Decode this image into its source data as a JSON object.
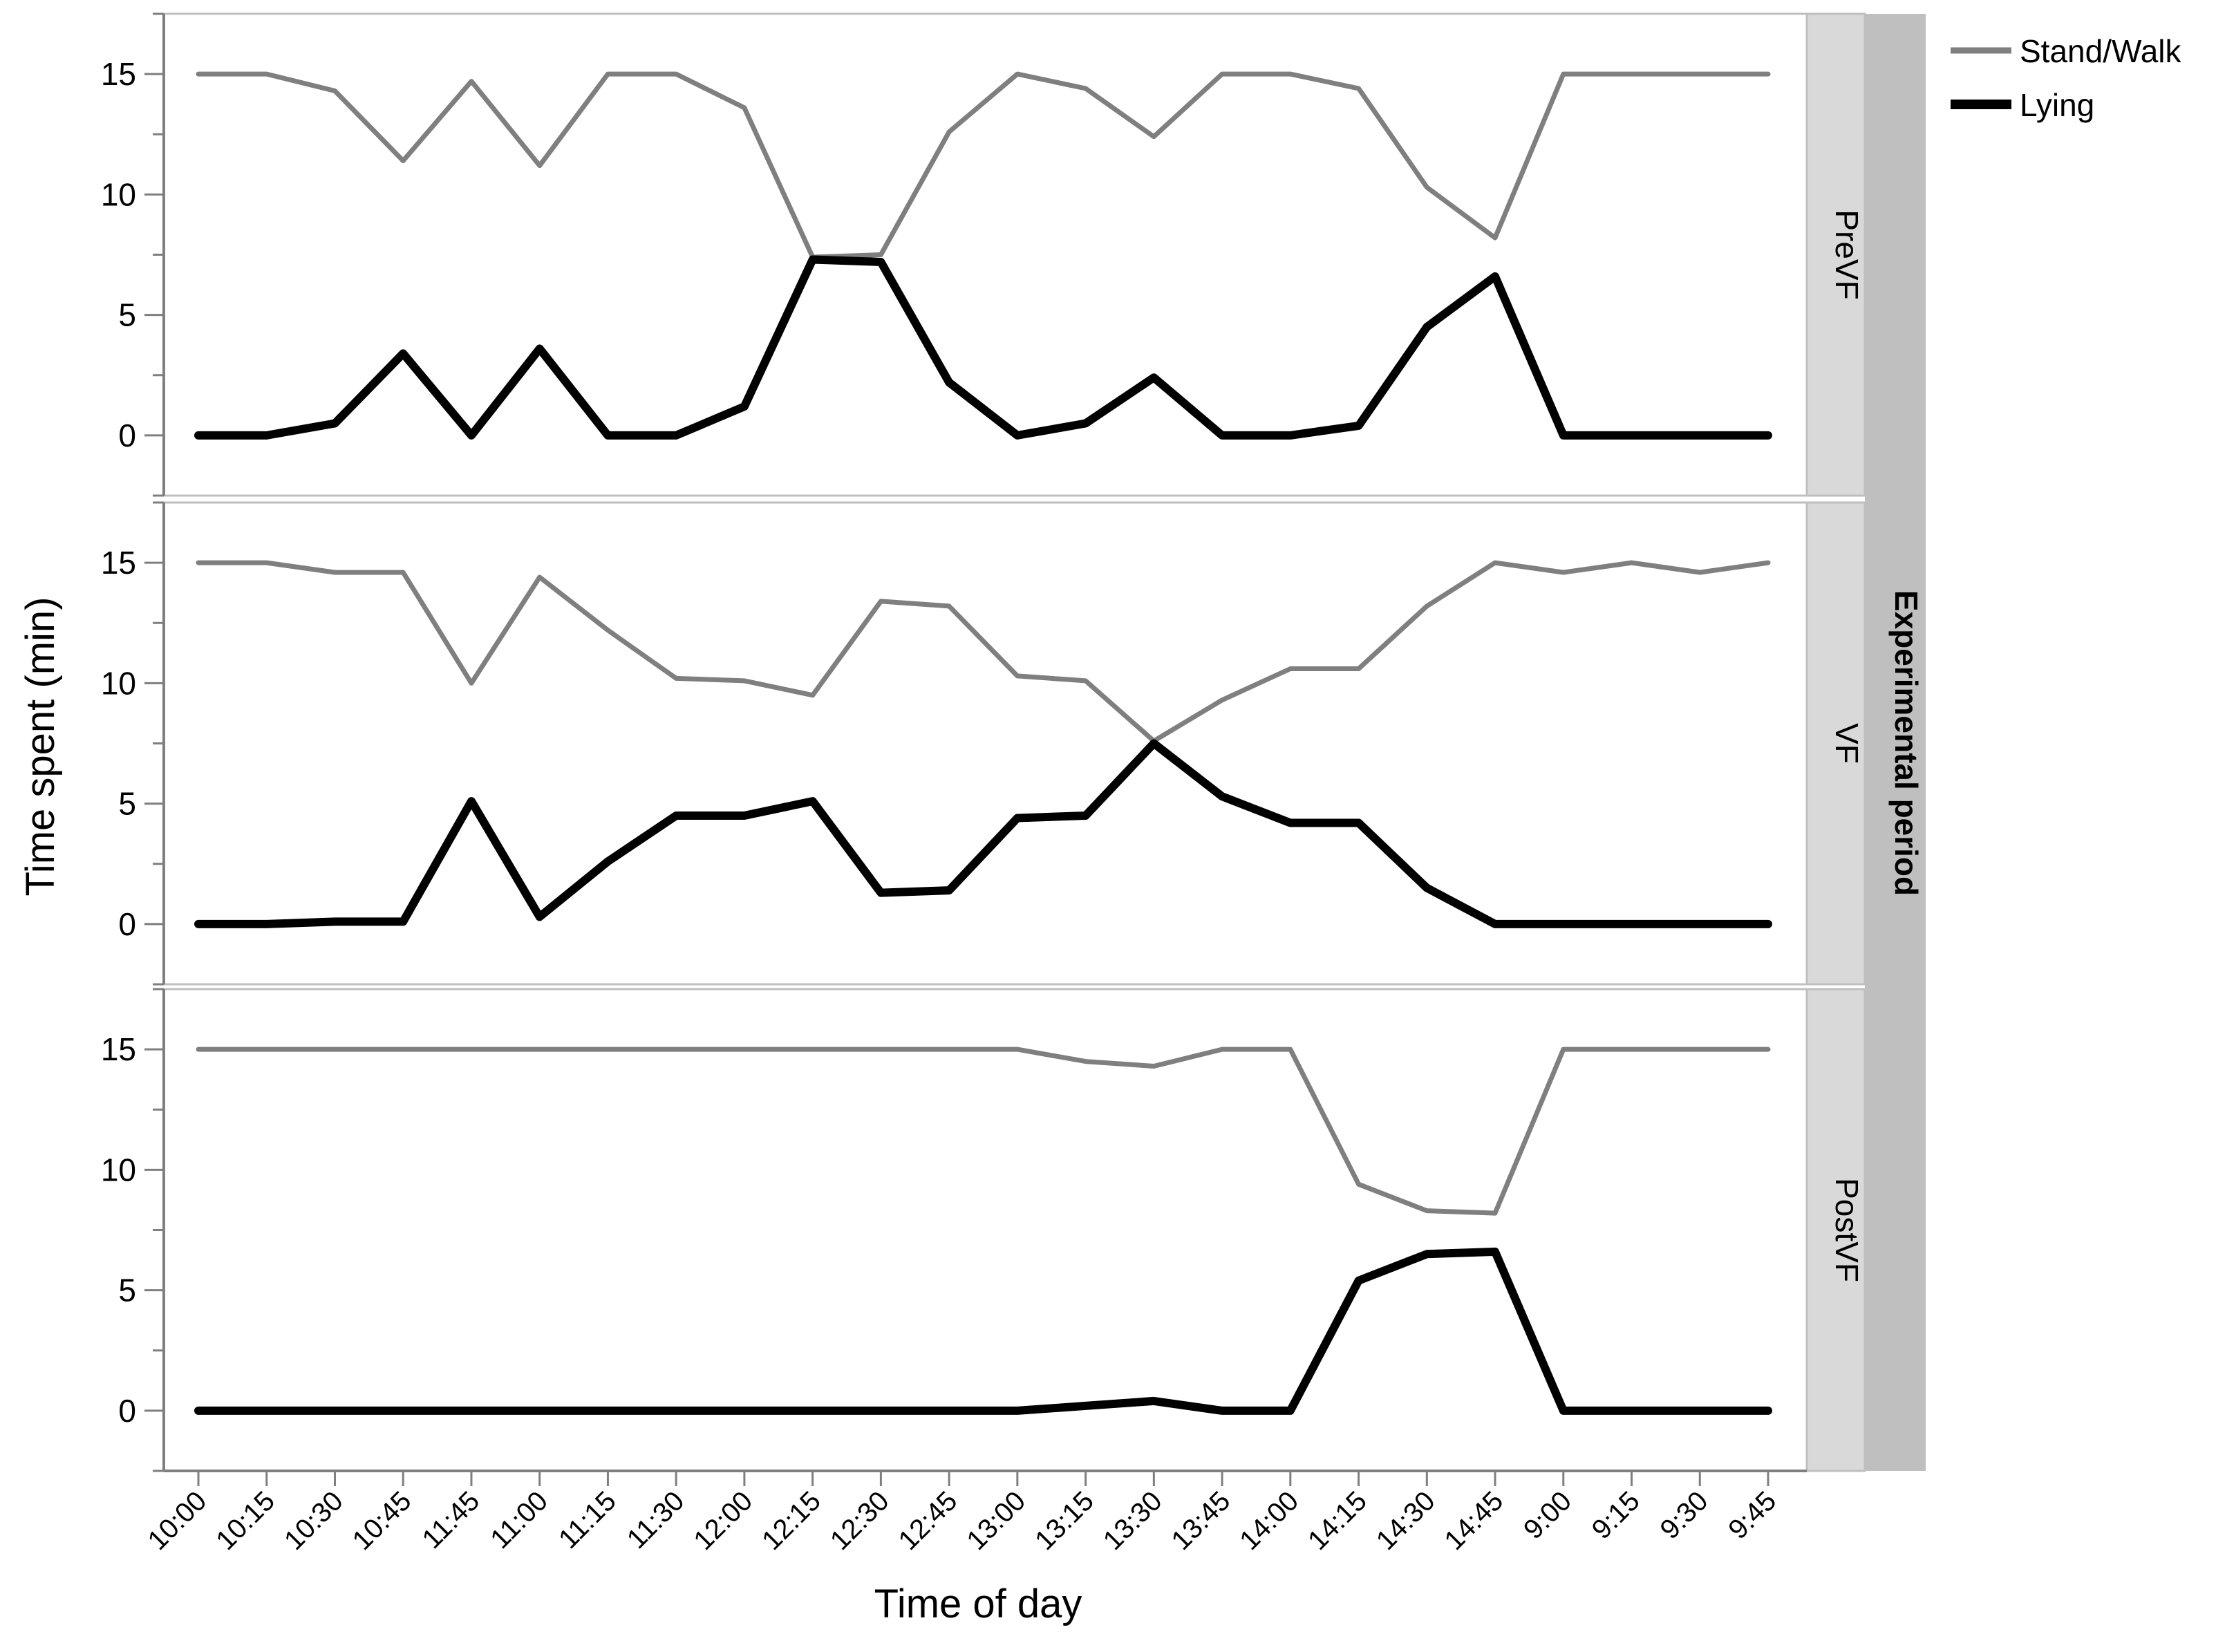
{
  "chart_data": {
    "type": "line",
    "ylabel": "Time spent (min)",
    "xlabel": "Time of day",
    "facet_label": "Experimental period",
    "categories": [
      "10:00",
      "10:15",
      "10:30",
      "10:45",
      "11:45",
      "11:00",
      "11:15",
      "11:30",
      "12:00",
      "12:15",
      "12:30",
      "12:45",
      "13:00",
      "13:15",
      "13:30",
      "13:45",
      "14:00",
      "14:15",
      "14:30",
      "14:45",
      "9:00",
      "9:15",
      "9:30",
      "9:45"
    ],
    "ylim": [
      -2.5,
      17.5
    ],
    "yticks": [
      0,
      5,
      10,
      15
    ],
    "grid": false,
    "legend_position": "top-right",
    "legend": [
      {
        "name": "Stand/Walk",
        "color": "#7f7f7f"
      },
      {
        "name": "Lying",
        "color": "#000000"
      }
    ],
    "panels": [
      {
        "name": "PreVF",
        "series": [
          {
            "name": "Stand/Walk",
            "values": [
              15,
              15,
              14.3,
              11.4,
              14.7,
              11.2,
              15,
              15,
              13.6,
              7.4,
              7.5,
              12.6,
              15,
              14.4,
              12.4,
              15,
              15,
              14.4,
              10.3,
              8.2,
              15,
              15,
              15,
              15
            ]
          },
          {
            "name": "Lying",
            "values": [
              0,
              0,
              0.5,
              3.4,
              0,
              3.6,
              0,
              0,
              1.2,
              7.3,
              7.2,
              2.2,
              0,
              0.5,
              2.4,
              0,
              0,
              0.4,
              4.5,
              6.6,
              0,
              0,
              0,
              0
            ]
          }
        ]
      },
      {
        "name": "VF",
        "series": [
          {
            "name": "Stand/Walk",
            "values": [
              15,
              15,
              14.6,
              14.6,
              10,
              14.4,
              12.2,
              10.2,
              10.1,
              9.5,
              13.4,
              13.2,
              10.3,
              10.1,
              7.6,
              9.3,
              10.6,
              10.6,
              13.2,
              15,
              14.6,
              15,
              14.6,
              15
            ]
          },
          {
            "name": "Lying",
            "values": [
              0,
              0,
              0.1,
              0.1,
              5.1,
              0.3,
              2.6,
              4.5,
              4.5,
              5.1,
              1.3,
              1.4,
              4.4,
              4.5,
              7.5,
              5.3,
              4.2,
              4.2,
              1.5,
              0,
              0,
              0,
              0,
              0
            ]
          }
        ]
      },
      {
        "name": "PostVF",
        "series": [
          {
            "name": "Stand/Walk",
            "values": [
              15,
              15,
              15,
              15,
              15,
              15,
              15,
              15,
              15,
              15,
              15,
              15,
              15,
              14.5,
              14.3,
              15,
              15,
              9.4,
              8.3,
              8.2,
              15,
              15,
              15,
              15
            ]
          },
          {
            "name": "Lying",
            "values": [
              0,
              0,
              0,
              0,
              0,
              0,
              0,
              0,
              0,
              0,
              0,
              0,
              0,
              0.2,
              0.4,
              0,
              0,
              5.4,
              6.5,
              6.6,
              0,
              0,
              0,
              0
            ]
          }
        ]
      }
    ]
  }
}
